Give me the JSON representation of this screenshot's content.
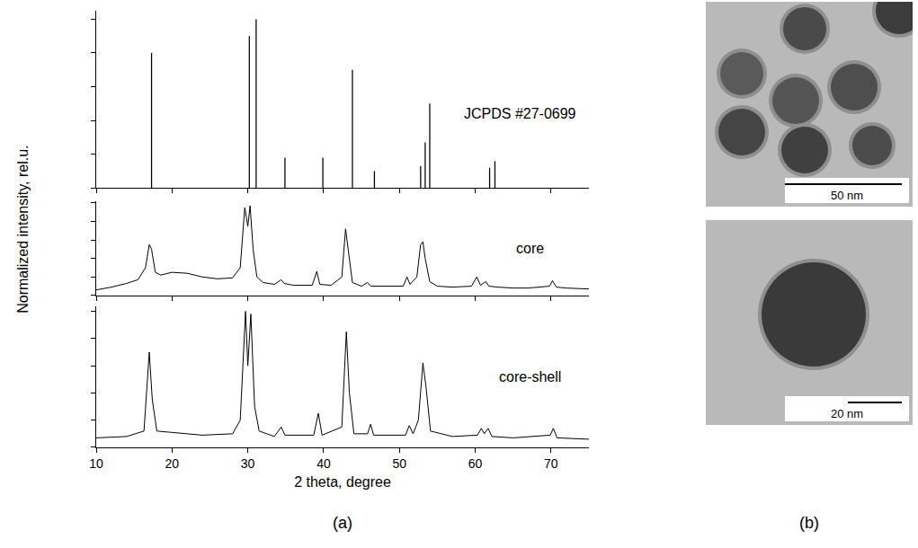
{
  "figure": {
    "panels": [
      "(a)",
      "(b)"
    ],
    "ylabel": "Normalized intensity, rel.u."
  },
  "chart_data": [
    {
      "type": "stick",
      "title": "JCPDS #27-0699",
      "color": "#000000",
      "grid": false,
      "tick_labels": false,
      "x": [
        17.3,
        30.2,
        31.1,
        34.9,
        39.9,
        43.8,
        46.7,
        52.8,
        53.4,
        54.0,
        61.9,
        62.6
      ],
      "values": [
        80,
        90,
        100,
        18,
        18,
        70,
        10,
        13,
        27,
        50,
        12,
        16
      ],
      "xlim": [
        10,
        75
      ],
      "xticks": [
        10,
        20,
        30,
        40,
        50,
        60,
        70
      ],
      "ylim": [
        0,
        105
      ],
      "yticks": [
        0,
        20,
        40,
        60,
        80,
        100
      ]
    },
    {
      "type": "line",
      "title": "core",
      "color": "#000000",
      "grid": false,
      "tick_labels": false,
      "x": [
        10,
        12,
        14,
        15.5,
        16.5,
        17.0,
        17.3,
        17.8,
        18.5,
        20,
        22,
        24,
        26,
        28,
        29.0,
        29.6,
        30.0,
        30.3,
        30.7,
        31.2,
        32,
        33.5,
        34.4,
        34.8,
        36,
        38.5,
        39.1,
        39.5,
        41,
        42.4,
        42.9,
        43.3,
        43.8,
        45,
        45.8,
        46.2,
        48,
        50.5,
        51.0,
        51.4,
        52.3,
        52.8,
        53.1,
        53.4,
        54.0,
        55,
        57,
        59.5,
        60.2,
        60.7,
        61.4,
        61.8,
        63,
        65,
        67,
        69.8,
        70.2,
        70.7,
        72,
        75
      ],
      "values": [
        0.06,
        0.09,
        0.13,
        0.17,
        0.3,
        0.55,
        0.5,
        0.25,
        0.22,
        0.25,
        0.24,
        0.2,
        0.18,
        0.19,
        0.3,
        0.95,
        0.75,
        0.97,
        0.5,
        0.2,
        0.14,
        0.12,
        0.17,
        0.13,
        0.11,
        0.11,
        0.26,
        0.12,
        0.11,
        0.2,
        0.72,
        0.45,
        0.14,
        0.1,
        0.14,
        0.1,
        0.1,
        0.1,
        0.2,
        0.12,
        0.2,
        0.55,
        0.58,
        0.4,
        0.15,
        0.1,
        0.09,
        0.1,
        0.2,
        0.11,
        0.15,
        0.1,
        0.09,
        0.08,
        0.08,
        0.1,
        0.16,
        0.09,
        0.08,
        0.07
      ],
      "xlim": [
        10,
        75
      ],
      "xticks": [
        10,
        20,
        30,
        40,
        50,
        60,
        70
      ],
      "ylim": [
        0,
        1.02
      ],
      "yticks": [
        0,
        0.2,
        0.4,
        0.6,
        0.8,
        1
      ]
    },
    {
      "type": "line",
      "title": "core-shell",
      "color": "#000000",
      "grid": false,
      "tick_labels": "x",
      "xlabel": "2 theta, degree",
      "x": [
        10,
        14,
        16.3,
        17.0,
        17.4,
        18,
        20,
        24,
        28,
        29.0,
        29.7,
        30.0,
        30.4,
        30.9,
        31.5,
        33.5,
        34.4,
        34.9,
        38.7,
        39.3,
        39.8,
        42.4,
        43.0,
        43.4,
        44.0,
        45.8,
        46.2,
        46.6,
        50.8,
        51.3,
        51.8,
        52.5,
        53.1,
        53.5,
        54.1,
        57,
        60.3,
        60.8,
        61.2,
        61.7,
        62.2,
        65,
        69.9,
        70.3,
        70.8,
        75
      ],
      "values": [
        0.07,
        0.08,
        0.12,
        0.7,
        0.35,
        0.12,
        0.11,
        0.09,
        0.1,
        0.2,
        1.0,
        0.6,
        0.98,
        0.3,
        0.12,
        0.08,
        0.15,
        0.09,
        0.09,
        0.25,
        0.09,
        0.15,
        0.85,
        0.4,
        0.1,
        0.1,
        0.17,
        0.09,
        0.09,
        0.16,
        0.1,
        0.2,
        0.62,
        0.45,
        0.12,
        0.08,
        0.09,
        0.14,
        0.1,
        0.14,
        0.08,
        0.07,
        0.09,
        0.14,
        0.07,
        0.06
      ],
      "xlim": [
        10,
        75
      ],
      "xticks": [
        10,
        20,
        30,
        40,
        50,
        60,
        70
      ],
      "ylim": [
        0,
        1.04
      ],
      "yticks": [
        0,
        0.2,
        0.4,
        0.6,
        0.8,
        1
      ]
    }
  ],
  "images": [
    {
      "scale_bar": "50 nm"
    },
    {
      "scale_bar": "20 nm"
    }
  ]
}
